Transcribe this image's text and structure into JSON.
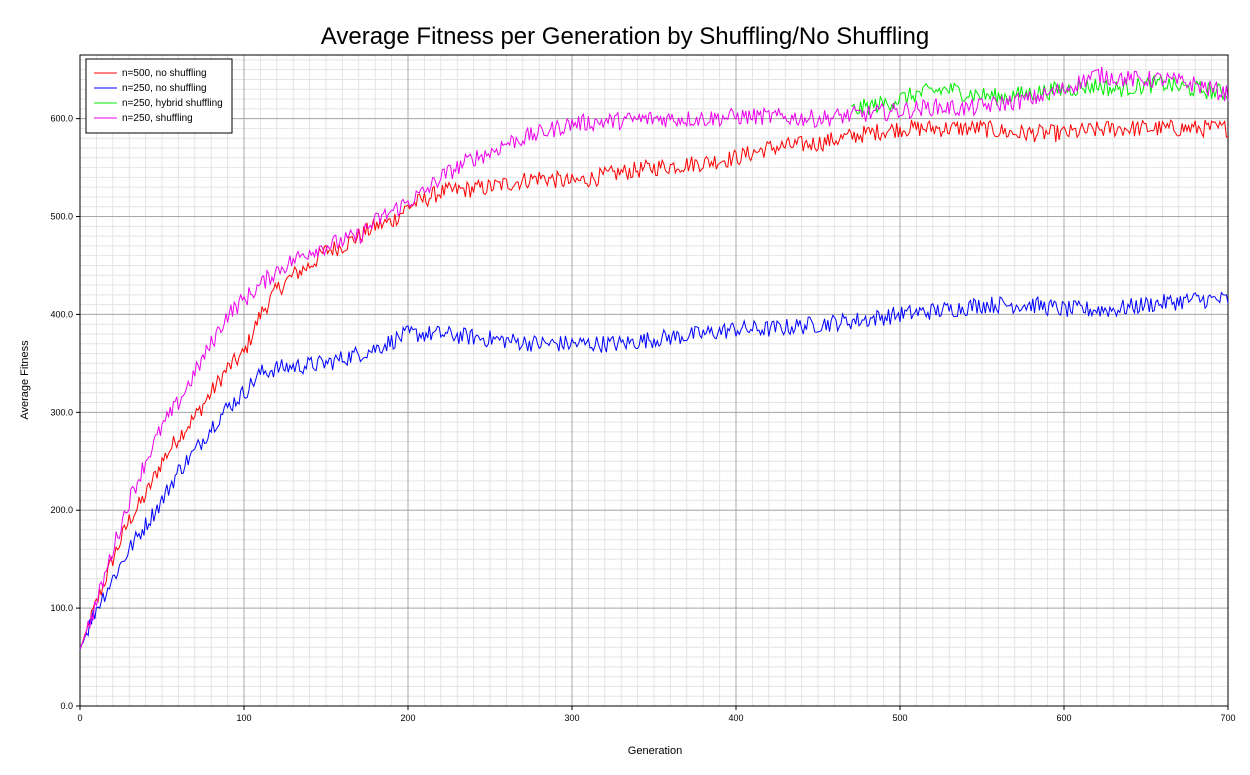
{
  "chart_data": {
    "type": "line",
    "title": "Average Fitness per Generation by Shuffling/No Shuffling",
    "xlabel": "Generation",
    "ylabel": "Average Fitness",
    "xlim": [
      0,
      700
    ],
    "ylim": [
      0,
      665
    ],
    "x_ticks": [
      0,
      100,
      200,
      300,
      400,
      500,
      600,
      700
    ],
    "y_ticks": [
      0,
      100,
      200,
      300,
      400,
      500,
      600
    ],
    "x_tick_labels": [
      "0",
      "100",
      "200",
      "300",
      "400",
      "500",
      "600",
      "700"
    ],
    "y_tick_labels": [
      "0.0",
      "100.0",
      "200.0",
      "300.0",
      "400.0",
      "500.0",
      "600.0"
    ],
    "grid": true,
    "legend_position": "top-left",
    "noise_note": "values are smoothed trend estimates; the original lines fluctuate by roughly ±10",
    "series": [
      {
        "name": "n=500, no shuffling",
        "color": "#ff0000",
        "x": [
          0,
          10,
          20,
          30,
          40,
          50,
          60,
          70,
          80,
          90,
          100,
          110,
          120,
          130,
          140,
          150,
          160,
          170,
          180,
          190,
          200,
          220,
          250,
          280,
          300,
          330,
          350,
          380,
          400,
          420,
          450,
          480,
          500,
          530,
          550,
          570,
          600,
          630,
          650,
          680,
          700
        ],
        "y": [
          58,
          105,
          150,
          190,
          215,
          250,
          275,
          295,
          320,
          345,
          360,
          400,
          425,
          440,
          450,
          465,
          470,
          480,
          490,
          495,
          510,
          525,
          530,
          540,
          535,
          545,
          550,
          555,
          560,
          570,
          575,
          585,
          590,
          590,
          590,
          585,
          585,
          590,
          590,
          590,
          590
        ]
      },
      {
        "name": "n=250, no shuffling",
        "color": "#0000ff",
        "x": [
          0,
          10,
          20,
          30,
          40,
          50,
          60,
          70,
          80,
          90,
          100,
          110,
          120,
          150,
          180,
          200,
          220,
          250,
          280,
          300,
          330,
          350,
          380,
          400,
          420,
          450,
          480,
          500,
          530,
          550,
          580,
          600,
          630,
          650,
          680,
          700
        ],
        "y": [
          58,
          100,
          130,
          160,
          185,
          210,
          240,
          260,
          285,
          305,
          320,
          340,
          345,
          350,
          365,
          380,
          380,
          375,
          370,
          370,
          370,
          375,
          380,
          385,
          385,
          390,
          395,
          400,
          405,
          410,
          410,
          405,
          405,
          410,
          415,
          415
        ]
      },
      {
        "name": "n=250, hybrid shuffling",
        "color": "#00ee00",
        "x": [
          470,
          480,
          490,
          500,
          510,
          520,
          530,
          540,
          550,
          560,
          570,
          580,
          590,
          600,
          610,
          620,
          630,
          640,
          650,
          660,
          670,
          680,
          690,
          700
        ],
        "y": [
          608,
          612,
          615,
          620,
          625,
          628,
          630,
          626,
          624,
          622,
          624,
          626,
          628,
          630,
          632,
          634,
          630,
          632,
          634,
          636,
          632,
          630,
          628,
          626
        ]
      },
      {
        "name": "n=250, shuffling",
        "color": "#ee00ee",
        "x": [
          0,
          10,
          20,
          30,
          40,
          50,
          60,
          70,
          80,
          90,
          100,
          110,
          120,
          130,
          140,
          150,
          160,
          170,
          180,
          190,
          200,
          210,
          220,
          230,
          240,
          250,
          260,
          270,
          280,
          290,
          300,
          330,
          350,
          380,
          400,
          420,
          450,
          480,
          500,
          520,
          540,
          560,
          580,
          600,
          620,
          640,
          660,
          680,
          700
        ],
        "y": [
          58,
          105,
          160,
          210,
          250,
          285,
          310,
          340,
          370,
          400,
          415,
          430,
          445,
          455,
          465,
          470,
          475,
          480,
          495,
          505,
          515,
          525,
          540,
          550,
          560,
          565,
          575,
          580,
          585,
          590,
          595,
          598,
          600,
          600,
          602,
          602,
          600,
          605,
          608,
          612,
          610,
          615,
          620,
          630,
          645,
          640,
          640,
          635,
          625
        ]
      }
    ]
  }
}
